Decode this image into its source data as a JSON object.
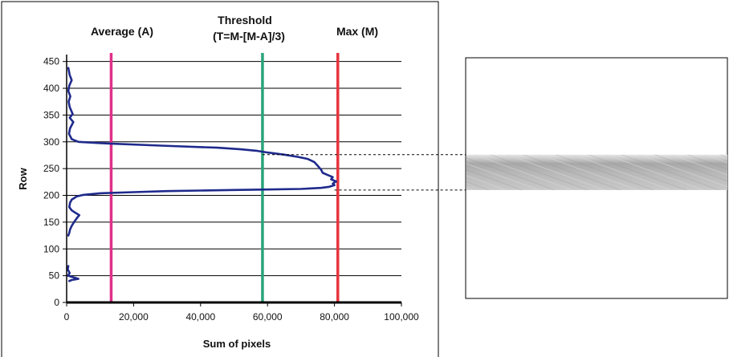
{
  "chart_data": {
    "type": "line",
    "title": "",
    "xlabel": "Sum of pixels",
    "ylabel": "Row",
    "xlim": [
      0,
      100000
    ],
    "ylim": [
      0,
      460
    ],
    "x_tick_labels": [
      "0",
      "20,000",
      "40,000",
      "60,000",
      "80,000",
      "100,000"
    ],
    "x_ticks": [
      0,
      20000,
      40000,
      60000,
      80000,
      100000
    ],
    "y_tick_labels": [
      "0",
      "50",
      "100",
      "150",
      "200",
      "250",
      "300",
      "350",
      "400",
      "450"
    ],
    "y_ticks": [
      0,
      50,
      100,
      150,
      200,
      250,
      300,
      350,
      400,
      450
    ],
    "grid": "horizontal",
    "series": [
      {
        "color": "#1f2a8c",
        "points": [
          [
            500,
            438
          ],
          [
            900,
            425
          ],
          [
            1500,
            415
          ],
          [
            800,
            405
          ],
          [
            500,
            395
          ],
          [
            1100,
            385
          ],
          [
            600,
            375
          ],
          [
            900,
            365
          ],
          [
            1800,
            352
          ],
          [
            900,
            345
          ],
          [
            2000,
            337
          ],
          [
            1000,
            325
          ],
          [
            700,
            315
          ],
          [
            1500,
            305
          ],
          [
            3500,
            300
          ],
          [
            12000,
            297
          ],
          [
            28000,
            293
          ],
          [
            45000,
            289
          ],
          [
            52000,
            286
          ],
          [
            57000,
            283
          ],
          [
            60000,
            280
          ],
          [
            65000,
            276
          ],
          [
            69000,
            272
          ],
          [
            72000,
            268
          ],
          [
            74000,
            262
          ],
          [
            75000,
            255
          ],
          [
            76000,
            248
          ],
          [
            76500,
            242
          ],
          [
            78000,
            238
          ],
          [
            79500,
            234
          ],
          [
            79000,
            230
          ],
          [
            80500,
            226
          ],
          [
            79500,
            222
          ],
          [
            80000,
            219
          ],
          [
            78500,
            216
          ],
          [
            76000,
            214
          ],
          [
            70000,
            212
          ],
          [
            60000,
            211
          ],
          [
            50000,
            210
          ],
          [
            40000,
            209
          ],
          [
            30000,
            208
          ],
          [
            20000,
            206
          ],
          [
            10000,
            204
          ],
          [
            5000,
            201
          ],
          [
            3000,
            198
          ],
          [
            1500,
            192
          ],
          [
            1000,
            186
          ],
          [
            800,
            178
          ],
          [
            1500,
            172
          ],
          [
            2500,
            168
          ],
          [
            3800,
            163
          ],
          [
            3000,
            157
          ],
          [
            2200,
            150
          ],
          [
            1500,
            143
          ],
          [
            1000,
            136
          ],
          [
            800,
            130
          ],
          [
            500,
            125
          ],
          [
            500,
            68
          ],
          [
            300,
            62
          ],
          [
            900,
            55
          ],
          [
            400,
            50
          ],
          [
            2500,
            46
          ],
          [
            3500,
            44
          ],
          [
            1500,
            42
          ],
          [
            800,
            40
          ]
        ]
      }
    ],
    "reference_lines": [
      {
        "label": "Average (A)",
        "x": 13300,
        "color": "#e0308a"
      },
      {
        "label": "Threshold",
        "label2": "(T=M-[M-A]/3)",
        "x": 58500,
        "color": "#2aa37a"
      },
      {
        "label": "Max (M)",
        "x": 81000,
        "color": "#e8343e"
      }
    ],
    "band_rows": [
      210,
      276
    ]
  }
}
